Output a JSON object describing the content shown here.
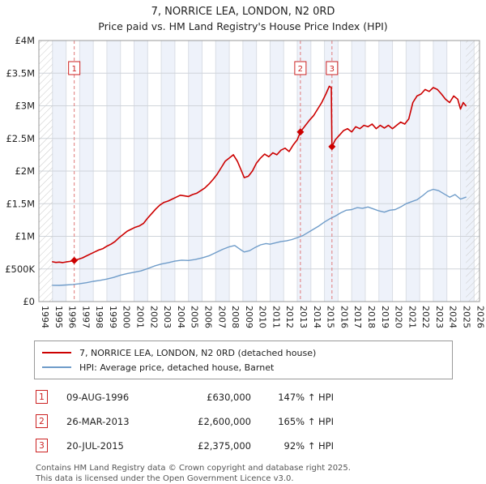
{
  "title": "7, NORRICE LEA, LONDON, N2 0RD",
  "subtitle": "Price paid vs. HM Land Registry's House Price Index (HPI)",
  "chart_data": {
    "type": "line",
    "x_range": [
      1994,
      2026.4
    ],
    "y_range": [
      0,
      4000000
    ],
    "x_ticks": [
      1994,
      1995,
      1996,
      1997,
      1998,
      1999,
      2000,
      2001,
      2002,
      2003,
      2004,
      2005,
      2006,
      2007,
      2008,
      2009,
      2010,
      2011,
      2012,
      2013,
      2014,
      2015,
      2016,
      2017,
      2018,
      2019,
      2020,
      2021,
      2022,
      2023,
      2024,
      2025,
      2026
    ],
    "y_ticks": [
      {
        "value": 0,
        "label": "£0"
      },
      {
        "value": 500000,
        "label": "£500K"
      },
      {
        "value": 1000000,
        "label": "£1M"
      },
      {
        "value": 1500000,
        "label": "£1.5M"
      },
      {
        "value": 2000000,
        "label": "£2M"
      },
      {
        "value": 2500000,
        "label": "£2.5M"
      },
      {
        "value": 3000000,
        "label": "£3M"
      },
      {
        "value": 3500000,
        "label": "£3.5M"
      },
      {
        "value": 4000000,
        "label": "£4M"
      }
    ],
    "data_start": 1995.0,
    "data_end": 2025.4,
    "grid": true,
    "legend_position": "bottom",
    "series": [
      {
        "name": "7, NORRICE LEA, LONDON, N2 0RD (detached house)",
        "color": "#cc0000",
        "points": [
          [
            1995.0,
            610000
          ],
          [
            1995.25,
            600000
          ],
          [
            1995.5,
            605000
          ],
          [
            1995.75,
            598000
          ],
          [
            1996.0,
            608000
          ],
          [
            1996.25,
            615000
          ],
          [
            1996.6,
            630000
          ],
          [
            1996.9,
            650000
          ],
          [
            1997.2,
            670000
          ],
          [
            1997.5,
            700000
          ],
          [
            1997.8,
            730000
          ],
          [
            1998.1,
            760000
          ],
          [
            1998.4,
            790000
          ],
          [
            1998.7,
            810000
          ],
          [
            1999.0,
            850000
          ],
          [
            1999.3,
            880000
          ],
          [
            1999.6,
            920000
          ],
          [
            1999.9,
            980000
          ],
          [
            2000.2,
            1030000
          ],
          [
            2000.5,
            1080000
          ],
          [
            2000.8,
            1110000
          ],
          [
            2001.1,
            1140000
          ],
          [
            2001.4,
            1160000
          ],
          [
            2001.7,
            1200000
          ],
          [
            2002.0,
            1280000
          ],
          [
            2002.3,
            1350000
          ],
          [
            2002.6,
            1420000
          ],
          [
            2002.9,
            1480000
          ],
          [
            2003.2,
            1520000
          ],
          [
            2003.5,
            1540000
          ],
          [
            2003.8,
            1570000
          ],
          [
            2004.1,
            1600000
          ],
          [
            2004.4,
            1630000
          ],
          [
            2004.7,
            1620000
          ],
          [
            2005.0,
            1610000
          ],
          [
            2005.3,
            1640000
          ],
          [
            2005.6,
            1660000
          ],
          [
            2005.9,
            1700000
          ],
          [
            2006.2,
            1740000
          ],
          [
            2006.5,
            1800000
          ],
          [
            2006.8,
            1870000
          ],
          [
            2007.1,
            1950000
          ],
          [
            2007.4,
            2050000
          ],
          [
            2007.7,
            2150000
          ],
          [
            2008.0,
            2200000
          ],
          [
            2008.3,
            2250000
          ],
          [
            2008.6,
            2150000
          ],
          [
            2008.9,
            2000000
          ],
          [
            2009.1,
            1900000
          ],
          [
            2009.4,
            1920000
          ],
          [
            2009.7,
            2000000
          ],
          [
            2010.0,
            2120000
          ],
          [
            2010.3,
            2200000
          ],
          [
            2010.6,
            2260000
          ],
          [
            2010.9,
            2220000
          ],
          [
            2011.2,
            2280000
          ],
          [
            2011.5,
            2250000
          ],
          [
            2011.8,
            2320000
          ],
          [
            2012.1,
            2350000
          ],
          [
            2012.4,
            2300000
          ],
          [
            2012.7,
            2400000
          ],
          [
            2013.0,
            2480000
          ],
          [
            2013.23,
            2600000
          ],
          [
            2013.6,
            2700000
          ],
          [
            2013.9,
            2780000
          ],
          [
            2014.2,
            2850000
          ],
          [
            2014.5,
            2950000
          ],
          [
            2014.8,
            3050000
          ],
          [
            2015.1,
            3180000
          ],
          [
            2015.35,
            3300000
          ],
          [
            2015.5,
            3280000
          ],
          [
            2015.55,
            2375000
          ],
          [
            2015.8,
            2480000
          ],
          [
            2016.1,
            2550000
          ],
          [
            2016.4,
            2620000
          ],
          [
            2016.7,
            2650000
          ],
          [
            2017.0,
            2600000
          ],
          [
            2017.3,
            2680000
          ],
          [
            2017.6,
            2650000
          ],
          [
            2017.9,
            2700000
          ],
          [
            2018.2,
            2680000
          ],
          [
            2018.5,
            2720000
          ],
          [
            2018.8,
            2650000
          ],
          [
            2019.1,
            2700000
          ],
          [
            2019.4,
            2660000
          ],
          [
            2019.7,
            2700000
          ],
          [
            2020.0,
            2650000
          ],
          [
            2020.3,
            2700000
          ],
          [
            2020.6,
            2750000
          ],
          [
            2020.9,
            2720000
          ],
          [
            2021.2,
            2800000
          ],
          [
            2021.5,
            3050000
          ],
          [
            2021.8,
            3150000
          ],
          [
            2022.1,
            3180000
          ],
          [
            2022.4,
            3250000
          ],
          [
            2022.7,
            3220000
          ],
          [
            2023.0,
            3280000
          ],
          [
            2023.3,
            3250000
          ],
          [
            2023.6,
            3180000
          ],
          [
            2023.9,
            3100000
          ],
          [
            2024.2,
            3050000
          ],
          [
            2024.5,
            3150000
          ],
          [
            2024.8,
            3100000
          ],
          [
            2025.0,
            2950000
          ],
          [
            2025.2,
            3050000
          ],
          [
            2025.4,
            3000000
          ]
        ]
      },
      {
        "name": "HPI: Average price, detached house, Barnet",
        "color": "#6f9cc9",
        "points": [
          [
            1995.0,
            250000
          ],
          [
            1995.5,
            248000
          ],
          [
            1996.0,
            255000
          ],
          [
            1996.5,
            262000
          ],
          [
            1997.0,
            275000
          ],
          [
            1997.5,
            290000
          ],
          [
            1998.0,
            310000
          ],
          [
            1998.5,
            325000
          ],
          [
            1999.0,
            345000
          ],
          [
            1999.5,
            370000
          ],
          [
            2000.0,
            405000
          ],
          [
            2000.5,
            430000
          ],
          [
            2001.0,
            450000
          ],
          [
            2001.5,
            470000
          ],
          [
            2002.0,
            505000
          ],
          [
            2002.5,
            545000
          ],
          [
            2003.0,
            575000
          ],
          [
            2003.5,
            595000
          ],
          [
            2004.0,
            620000
          ],
          [
            2004.5,
            635000
          ],
          [
            2005.0,
            630000
          ],
          [
            2005.5,
            645000
          ],
          [
            2006.0,
            670000
          ],
          [
            2006.5,
            700000
          ],
          [
            2007.0,
            750000
          ],
          [
            2007.5,
            800000
          ],
          [
            2008.0,
            840000
          ],
          [
            2008.4,
            860000
          ],
          [
            2008.8,
            800000
          ],
          [
            2009.1,
            760000
          ],
          [
            2009.5,
            780000
          ],
          [
            2009.9,
            830000
          ],
          [
            2010.3,
            870000
          ],
          [
            2010.7,
            890000
          ],
          [
            2011.0,
            880000
          ],
          [
            2011.4,
            900000
          ],
          [
            2011.8,
            920000
          ],
          [
            2012.2,
            930000
          ],
          [
            2012.6,
            950000
          ],
          [
            2013.0,
            980000
          ],
          [
            2013.4,
            1010000
          ],
          [
            2013.8,
            1060000
          ],
          [
            2014.2,
            1110000
          ],
          [
            2014.6,
            1160000
          ],
          [
            2015.0,
            1220000
          ],
          [
            2015.4,
            1270000
          ],
          [
            2015.8,
            1310000
          ],
          [
            2016.2,
            1360000
          ],
          [
            2016.6,
            1400000
          ],
          [
            2017.0,
            1410000
          ],
          [
            2017.4,
            1440000
          ],
          [
            2017.8,
            1430000
          ],
          [
            2018.2,
            1450000
          ],
          [
            2018.6,
            1420000
          ],
          [
            2019.0,
            1390000
          ],
          [
            2019.4,
            1370000
          ],
          [
            2019.8,
            1400000
          ],
          [
            2020.2,
            1410000
          ],
          [
            2020.6,
            1450000
          ],
          [
            2021.0,
            1500000
          ],
          [
            2021.4,
            1530000
          ],
          [
            2021.8,
            1560000
          ],
          [
            2022.2,
            1620000
          ],
          [
            2022.6,
            1690000
          ],
          [
            2023.0,
            1720000
          ],
          [
            2023.4,
            1700000
          ],
          [
            2023.8,
            1650000
          ],
          [
            2024.2,
            1600000
          ],
          [
            2024.6,
            1640000
          ],
          [
            2025.0,
            1570000
          ],
          [
            2025.4,
            1600000
          ]
        ]
      }
    ],
    "sales": [
      {
        "num": "1",
        "x": 1996.6,
        "y": 630000
      },
      {
        "num": "2",
        "x": 2013.23,
        "y": 2600000
      },
      {
        "num": "3",
        "x": 2015.55,
        "y": 2375000
      }
    ]
  },
  "legend": [
    {
      "label": "7, NORRICE LEA, LONDON, N2 0RD (detached house)",
      "color": "#cc0000"
    },
    {
      "label": "HPI: Average price, detached house, Barnet",
      "color": "#6f9cc9"
    }
  ],
  "transactions": [
    {
      "num": "1",
      "date": "09-AUG-1996",
      "price": "£630,000",
      "hpi": "147% ↑ HPI"
    },
    {
      "num": "2",
      "date": "26-MAR-2013",
      "price": "£2,600,000",
      "hpi": "165% ↑ HPI"
    },
    {
      "num": "3",
      "date": "20-JUL-2015",
      "price": "£2,375,000",
      "hpi": "92% ↑ HPI"
    }
  ],
  "footer": {
    "line1": "Contains HM Land Registry data © Crown copyright and database right 2025.",
    "line2": "This data is licensed under the Open Government Licence v3.0."
  }
}
